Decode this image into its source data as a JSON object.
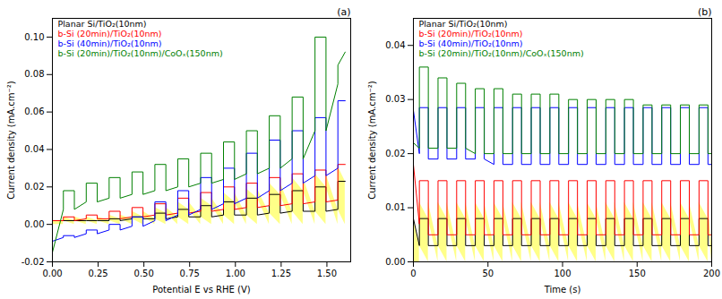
{
  "chart_data": [
    {
      "type": "line",
      "title": "(a)",
      "x_label": "Potential E vs RHE (V)",
      "y_label": "Current density (mA.cm⁻²)",
      "xlim": [
        0,
        1.63
      ],
      "ylim": [
        -0.02,
        0.11
      ],
      "xticks": [
        {
          "value": 0,
          "label": "0.00"
        },
        0.25,
        {
          "value": 0.5,
          "label": "0.50"
        },
        0.75,
        {
          "value": 1,
          "label": "1.00"
        },
        1.25,
        {
          "value": 1.5,
          "label": "1.50"
        }
      ],
      "yticks": [
        -0.02,
        {
          "value": 0,
          "label": "0.00"
        },
        0.02,
        0.04,
        0.06,
        0.08,
        {
          "value": 0.1,
          "label": "0.10"
        }
      ],
      "grid": false,
      "legend": "top-left",
      "x": [
        0,
        0.06,
        0.06,
        0.12,
        0.12,
        0.185,
        0.185,
        0.245,
        0.245,
        0.31,
        0.31,
        0.37,
        0.37,
        0.435,
        0.435,
        0.495,
        0.495,
        0.56,
        0.56,
        0.62,
        0.62,
        0.685,
        0.685,
        0.745,
        0.745,
        0.81,
        0.81,
        0.87,
        0.87,
        0.935,
        0.935,
        0.995,
        0.995,
        1.06,
        1.06,
        1.12,
        1.12,
        1.185,
        1.185,
        1.245,
        1.245,
        1.31,
        1.31,
        1.37,
        1.37,
        1.435,
        1.435,
        1.495,
        1.495,
        1.56,
        1.56,
        1.6
      ],
      "series": [
        {
          "name": "Planar Si/TiO₂(10nm)",
          "color": "#000000",
          "type": "area",
          "values": [
            0.002,
            0.002,
            0.002,
            0.002,
            0.002,
            0.002,
            0.002,
            0.002,
            0.002,
            0.002,
            0.003,
            0.003,
            0.002,
            0.003,
            0.004,
            0.004,
            0.003,
            0.003,
            0.006,
            0.006,
            0.003,
            0.004,
            0.008,
            0.008,
            0.004,
            0.004,
            0.01,
            0.01,
            0.004,
            0.005,
            0.012,
            0.012,
            0.005,
            0.005,
            0.014,
            0.014,
            0.005,
            0.006,
            0.016,
            0.016,
            0.006,
            0.007,
            0.018,
            0.018,
            0.007,
            0.007,
            0.02,
            0.02,
            0.007,
            0.008,
            0.023,
            0.023
          ]
        },
        {
          "name": "b-Si (20min)/TiO₂(10nm)",
          "color": "#ff0000",
          "type": "line",
          "values": [
            0.002,
            0.002,
            0.004,
            0.004,
            0.002,
            0.003,
            0.005,
            0.005,
            0.003,
            0.003,
            0.007,
            0.007,
            0.003,
            0.004,
            0.009,
            0.009,
            0.004,
            0.005,
            0.011,
            0.011,
            0.005,
            0.006,
            0.014,
            0.014,
            0.006,
            0.007,
            0.017,
            0.017,
            0.007,
            0.008,
            0.02,
            0.02,
            0.008,
            0.009,
            0.022,
            0.022,
            0.009,
            0.01,
            0.025,
            0.025,
            0.01,
            0.011,
            0.027,
            0.027,
            0.011,
            0.012,
            0.029,
            0.029,
            0.012,
            0.013,
            0.032,
            0.032
          ]
        },
        {
          "name": "b-Si (40min)/TiO₂(10nm)",
          "color": "#0000ff",
          "type": "line",
          "values": [
            -0.009,
            -0.007,
            -0.006,
            -0.006,
            -0.007,
            -0.005,
            -0.003,
            -0.003,
            -0.005,
            -0.003,
            0,
            0,
            -0.003,
            -0.001,
            0.004,
            0.004,
            -0.001,
            0.002,
            0.012,
            0.012,
            0.002,
            0.005,
            0.018,
            0.018,
            0.005,
            0.008,
            0.025,
            0.025,
            0.008,
            0.011,
            0.03,
            0.03,
            0.011,
            0.014,
            0.038,
            0.038,
            0.014,
            0.018,
            0.045,
            0.045,
            0.018,
            0.022,
            0.05,
            0.05,
            0.022,
            0.026,
            0.057,
            0.057,
            0.026,
            0.03,
            0.066,
            0.066
          ]
        },
        {
          "name": "b-Si (20min)/TiO₂(10nm)/CoOₓ(150nm)",
          "color": "#008000",
          "type": "line",
          "values": [
            -0.015,
            0.008,
            0.018,
            0.018,
            0.008,
            0.012,
            0.022,
            0.022,
            0.012,
            0.014,
            0.025,
            0.025,
            0.014,
            0.016,
            0.028,
            0.028,
            0.016,
            0.018,
            0.032,
            0.032,
            0.018,
            0.02,
            0.035,
            0.035,
            0.02,
            0.022,
            0.038,
            0.038,
            0.022,
            0.024,
            0.044,
            0.044,
            0.024,
            0.027,
            0.05,
            0.05,
            0.027,
            0.03,
            0.058,
            0.058,
            0.03,
            0.035,
            0.068,
            0.068,
            0.035,
            0.05,
            0.1,
            0.1,
            0.05,
            0.075,
            0.085,
            0.092
          ]
        }
      ]
    },
    {
      "type": "line",
      "title": "(b)",
      "x_label": "Time (s)",
      "y_label": "Current density (mA.cm⁻²)",
      "xlim": [
        0,
        200
      ],
      "ylim": [
        0,
        0.045
      ],
      "xticks": [
        0,
        50,
        100,
        150,
        200
      ],
      "yticks": [
        {
          "value": 0,
          "label": "0.00"
        },
        0.01,
        0.02,
        0.03,
        0.04
      ],
      "grid": false,
      "legend": "top-left",
      "x": [
        0,
        4,
        4,
        10,
        10,
        16.5,
        16.5,
        22.5,
        22.5,
        29,
        29,
        35,
        35,
        41.5,
        41.5,
        47.5,
        47.5,
        54,
        54,
        60,
        60,
        66.5,
        66.5,
        72.5,
        72.5,
        79,
        79,
        85,
        85,
        91.5,
        91.5,
        97.5,
        97.5,
        104,
        104,
        110,
        110,
        116.5,
        116.5,
        122.5,
        122.5,
        129,
        129,
        135,
        135,
        141.5,
        141.5,
        147.5,
        147.5,
        154,
        154,
        160,
        160,
        166.5,
        166.5,
        172.5,
        172.5,
        179,
        179,
        185,
        185,
        191.5,
        191.5,
        197.5,
        197.5,
        200
      ],
      "series": [
        {
          "name": "Planar Si/TiO₂(10nm)",
          "color": "#000000",
          "type": "area",
          "values": [
            0.008,
            0.003,
            0.008,
            0.008,
            0.003,
            0.003,
            0.008,
            0.008,
            0.003,
            0.003,
            0.008,
            0.008,
            0.003,
            0.003,
            0.008,
            0.008,
            0.003,
            0.003,
            0.008,
            0.008,
            0.003,
            0.003,
            0.008,
            0.008,
            0.003,
            0.003,
            0.008,
            0.008,
            0.003,
            0.003,
            0.008,
            0.008,
            0.003,
            0.003,
            0.008,
            0.008,
            0.003,
            0.003,
            0.008,
            0.008,
            0.003,
            0.003,
            0.008,
            0.008,
            0.003,
            0.003,
            0.008,
            0.008,
            0.003,
            0.003,
            0.008,
            0.008,
            0.003,
            0.003,
            0.008,
            0.008,
            0.003,
            0.003,
            0.008,
            0.008,
            0.003,
            0.003,
            0.008,
            0.008,
            0.003,
            0.003
          ]
        },
        {
          "name": "b-Si (20min)/TiO₂(10nm)",
          "color": "#ff0000",
          "type": "line",
          "values": [
            0.018,
            0.007,
            0.015,
            0.015,
            0.005,
            0.005,
            0.015,
            0.015,
            0.005,
            0.005,
            0.015,
            0.015,
            0.005,
            0.005,
            0.015,
            0.015,
            0.005,
            0.005,
            0.015,
            0.015,
            0.005,
            0.005,
            0.015,
            0.015,
            0.005,
            0.005,
            0.015,
            0.015,
            0.005,
            0.005,
            0.015,
            0.015,
            0.005,
            0.005,
            0.015,
            0.015,
            0.005,
            0.005,
            0.015,
            0.015,
            0.005,
            0.005,
            0.015,
            0.015,
            0.005,
            0.005,
            0.015,
            0.015,
            0.005,
            0.005,
            0.015,
            0.015,
            0.005,
            0.005,
            0.015,
            0.015,
            0.005,
            0.005,
            0.015,
            0.015,
            0.005,
            0.005,
            0.015,
            0.015,
            0.005,
            0.005
          ]
        },
        {
          "name": "b-Si (40min)/TiO₂(10nm)",
          "color": "#0000ff",
          "type": "line",
          "values": [
            0.028,
            0.02,
            0.0285,
            0.0285,
            0.019,
            0.019,
            0.0285,
            0.0285,
            0.019,
            0.019,
            0.0285,
            0.0285,
            0.019,
            0.019,
            0.0285,
            0.0285,
            0.019,
            0.018,
            0.0285,
            0.0285,
            0.018,
            0.018,
            0.0285,
            0.0285,
            0.018,
            0.018,
            0.0285,
            0.0285,
            0.018,
            0.018,
            0.0285,
            0.0285,
            0.018,
            0.018,
            0.0285,
            0.0285,
            0.018,
            0.018,
            0.0285,
            0.0285,
            0.018,
            0.018,
            0.0285,
            0.0285,
            0.018,
            0.018,
            0.0285,
            0.0285,
            0.018,
            0.018,
            0.0285,
            0.0285,
            0.018,
            0.018,
            0.0285,
            0.0285,
            0.018,
            0.018,
            0.0285,
            0.0285,
            0.018,
            0.018,
            0.0285,
            0.0285,
            0.018,
            0.018
          ]
        },
        {
          "name": "b-Si (20min)/TiO₂(10nm)/CoOₓ(150nm)",
          "color": "#008000",
          "type": "line",
          "values": [
            0.022,
            0.021,
            0.036,
            0.036,
            0.021,
            0.021,
            0.034,
            0.034,
            0.021,
            0.021,
            0.033,
            0.033,
            0.021,
            0.02,
            0.032,
            0.032,
            0.02,
            0.02,
            0.032,
            0.032,
            0.02,
            0.02,
            0.031,
            0.031,
            0.02,
            0.02,
            0.031,
            0.031,
            0.02,
            0.02,
            0.031,
            0.031,
            0.02,
            0.02,
            0.03,
            0.03,
            0.02,
            0.02,
            0.03,
            0.03,
            0.02,
            0.02,
            0.03,
            0.03,
            0.02,
            0.02,
            0.03,
            0.03,
            0.02,
            0.02,
            0.029,
            0.029,
            0.02,
            0.02,
            0.029,
            0.029,
            0.02,
            0.02,
            0.029,
            0.029,
            0.02,
            0.02,
            0.029,
            0.029,
            0.02,
            0.02
          ]
        }
      ]
    }
  ]
}
